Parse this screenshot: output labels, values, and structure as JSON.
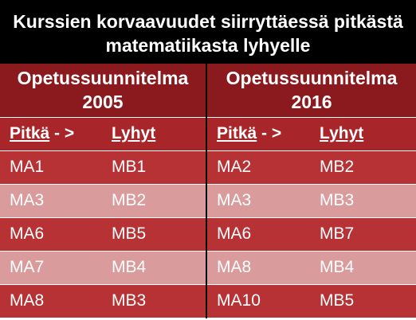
{
  "title_line1": "Kurssien korvaavuudet siirryttäessä pitkästä",
  "title_line2": "matematiikasta lyhyelle",
  "plans": [
    {
      "line1": "Opetussuunnitelma",
      "line2": "2005"
    },
    {
      "line1": "Opetussuunnitelma",
      "line2": "2016"
    }
  ],
  "colhead": {
    "long_word": "Pitkä",
    "arrow": " - >",
    "short": "Lyhyt"
  },
  "rows": [
    {
      "a": "MA1",
      "b": "MB1",
      "c": "MA2",
      "d": "MB2"
    },
    {
      "a": "MA3",
      "b": "MB2",
      "c": "MA3",
      "d": "MB3"
    },
    {
      "a": "MA6",
      "b": "MB5",
      "c": "MA6",
      "d": "MB7"
    },
    {
      "a": "MA7",
      "b": "MB4",
      "c": "MA8",
      "d": "MB4"
    },
    {
      "a": "MA8",
      "b": "MB3",
      "c": "MA10",
      "d": "MB5"
    }
  ]
}
